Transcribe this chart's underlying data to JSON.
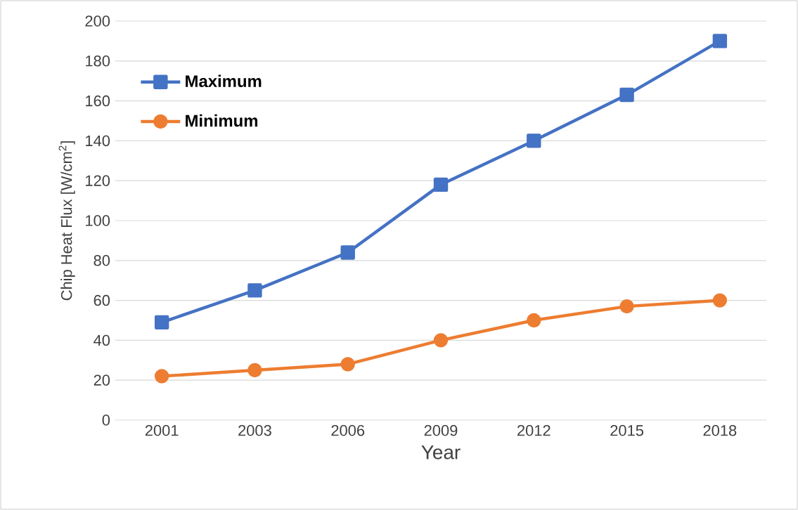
{
  "chart_data": {
    "type": "line",
    "xlabel": "Year",
    "ylabel": "Chip Heat Flux [W/cm$^{2}$]",
    "categories": [
      "2001",
      "2003",
      "2006",
      "2009",
      "2012",
      "2015",
      "2018"
    ],
    "series": [
      {
        "name": "Maximum",
        "color": "#4472c4",
        "marker": "square",
        "values": [
          49,
          65,
          84,
          118,
          140,
          163,
          190
        ]
      },
      {
        "name": "Minimum",
        "color": "#ed7d31",
        "marker": "circle",
        "values": [
          22,
          25,
          28,
          40,
          50,
          57,
          60
        ]
      }
    ],
    "ylim": [
      0,
      200
    ],
    "yticks": [
      0,
      20,
      40,
      60,
      80,
      100,
      120,
      140,
      160,
      180,
      200
    ],
    "grid": "y",
    "legend": "top left",
    "line_style": "solid"
  }
}
